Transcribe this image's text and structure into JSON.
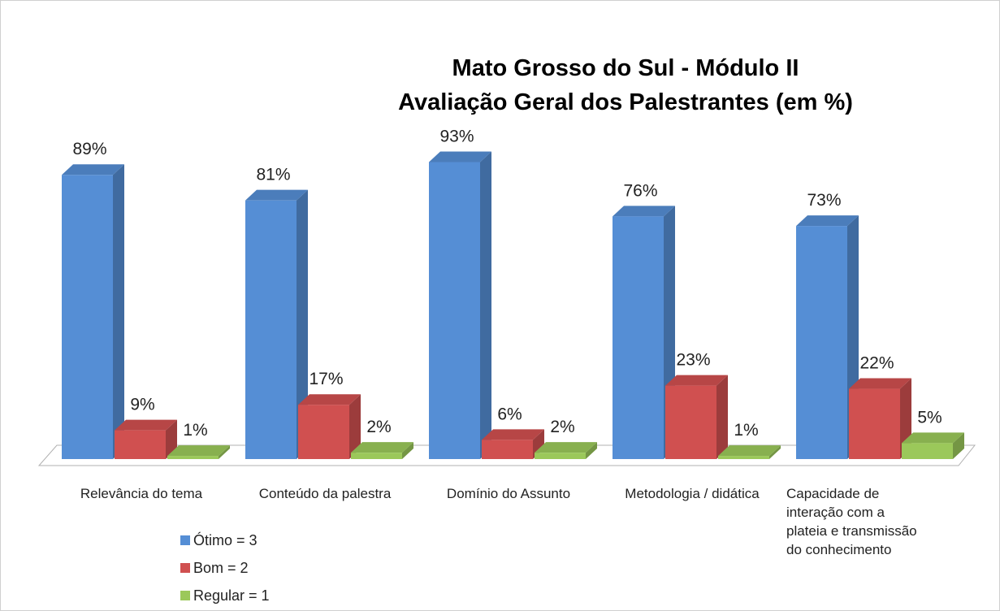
{
  "chart_data": {
    "type": "bar3d",
    "title": "Mato Grosso do Sul - Módulo II",
    "subtitle": "Avaliação Geral dos Palestrantes (em %)",
    "categories": [
      "Relevância do tema",
      "Conteúdo da palestra",
      "Domínio do Assunto",
      "Metodologia / didática",
      "Capacidade de interação com a plateia e transmissão do conhecimento"
    ],
    "series": [
      {
        "name": "Ótimo = 3",
        "color": "#558ed5",
        "values": [
          89,
          81,
          93,
          76,
          73
        ],
        "value_labels": [
          "89%",
          "81%",
          "93%",
          "76%",
          "73%"
        ]
      },
      {
        "name": "Bom = 2",
        "color": "#d05050",
        "values": [
          9,
          17,
          6,
          23,
          22
        ],
        "value_labels": [
          "9%",
          "17%",
          "6%",
          "23%",
          "22%"
        ]
      },
      {
        "name": "Regular = 1",
        "color": "#9bc85a",
        "values": [
          1,
          2,
          2,
          1,
          5
        ],
        "value_labels": [
          "1%",
          "2%",
          "2%",
          "1%",
          "5%"
        ]
      }
    ],
    "legend": "bottom-left"
  }
}
